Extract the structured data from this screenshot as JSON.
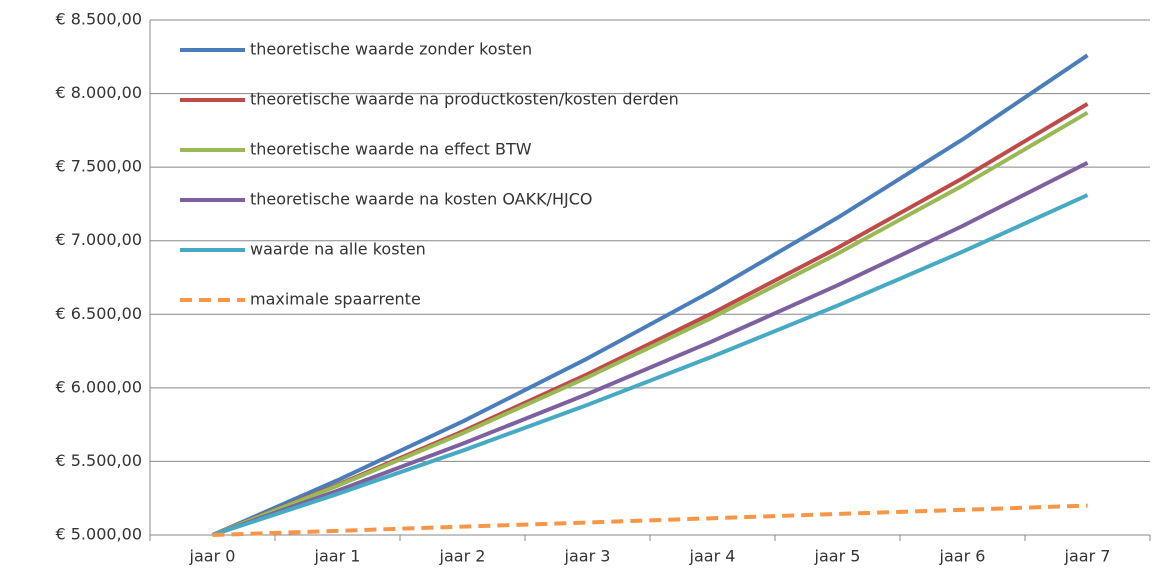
{
  "chart_data": {
    "type": "line",
    "categories": [
      "jaar 0",
      "jaar 1",
      "jaar 2",
      "jaar 3",
      "jaar 4",
      "jaar 5",
      "jaar 6",
      "jaar 7"
    ],
    "series": [
      {
        "name": "theoretische waarde zonder kosten",
        "color": "#4a7ebb",
        "dashed": false,
        "values": [
          5000,
          5372,
          5771,
          6200,
          6661,
          7156,
          7688,
          8260
        ]
      },
      {
        "name": "theoretische waarde na productkosten/kosten derden",
        "color": "#be4b48",
        "dashed": false,
        "values": [
          5000,
          5341,
          5704,
          6093,
          6508,
          6951,
          7424,
          7930
        ]
      },
      {
        "name": "theoretische waarde na effect BTW",
        "color": "#98b954",
        "dashed": false,
        "values": [
          5000,
          5335,
          5691,
          6072,
          6478,
          6912,
          7374,
          7870
        ]
      },
      {
        "name": "theoretische waarde na kosten OAKK/HJCO",
        "color": "#7d60a0",
        "dashed": false,
        "values": [
          5000,
          5301,
          5620,
          5958,
          6317,
          6697,
          7100,
          7530
        ]
      },
      {
        "name": "waarde na alle kosten",
        "color": "#46aac5",
        "dashed": false,
        "values": [
          5000,
          5279,
          5573,
          5884,
          6213,
          6559,
          6925,
          7310
        ]
      },
      {
        "name": "maximale spaarrente",
        "color": "#f79646",
        "dashed": true,
        "values": [
          5000,
          5028,
          5057,
          5085,
          5114,
          5143,
          5171,
          5200
        ]
      }
    ],
    "ylim": [
      5000,
      8500
    ],
    "yticks": [
      {
        "value": 5000,
        "label": "€ 5.000,00"
      },
      {
        "value": 5500,
        "label": "€ 5.500,00"
      },
      {
        "value": 6000,
        "label": "€ 6.000,00"
      },
      {
        "value": 6500,
        "label": "€ 6.500,00"
      },
      {
        "value": 7000,
        "label": "€ 7.000,00"
      },
      {
        "value": 7500,
        "label": "€ 7.500,00"
      },
      {
        "value": 8000,
        "label": "€ 8.000,00"
      },
      {
        "value": 8500,
        "label": "€ 8.500,00"
      }
    ],
    "grid": true,
    "legend": "top-left"
  }
}
